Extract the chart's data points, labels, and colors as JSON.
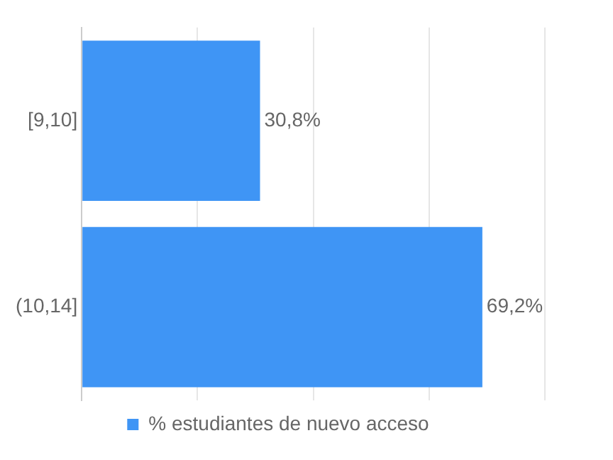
{
  "chart_data": {
    "type": "bar",
    "orientation": "horizontal",
    "categories": [
      "[9,10]",
      "(10,14]"
    ],
    "series": [
      {
        "name": "% estudiantes de nuevo acceso",
        "color": "#3f95f5",
        "values": [
          30.8,
          69.2
        ],
        "value_labels": [
          "30,8%",
          "69,2%"
        ]
      }
    ],
    "tick_labels": "y",
    "grid": "x",
    "legend": "bottom"
  }
}
